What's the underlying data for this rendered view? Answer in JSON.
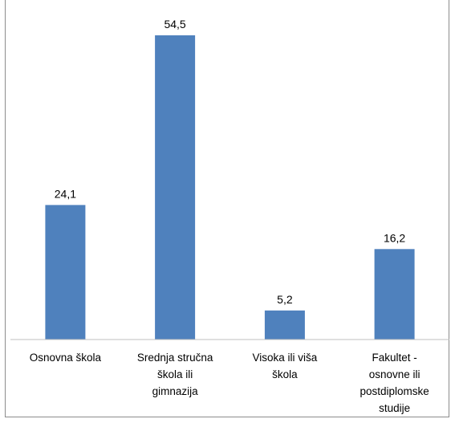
{
  "chart_data": {
    "type": "bar",
    "categories": [
      "Osnovna škola",
      "Srednja stručna škola ili gimnazija",
      "Visoka ili viša škola",
      "Fakultet - osnovne ili postdiplomske studije"
    ],
    "category_lines": [
      [
        "Osnovna škola"
      ],
      [
        "Srednja stručna",
        "škola ili",
        "gimnazija"
      ],
      [
        "Visoka ili viša",
        "škola"
      ],
      [
        "Fakultet -",
        "osnovne ili",
        "postdiplomske",
        "studije"
      ]
    ],
    "values": [
      24.1,
      54.5,
      5.2,
      16.2
    ],
    "value_labels": [
      "24,1",
      "54,5",
      "5,2",
      "16,2"
    ],
    "bar_color": "#4f81bd",
    "axis_color": "#bfbfbf",
    "ylim": [
      0,
      54.5
    ],
    "grid": false,
    "legend": "none"
  }
}
